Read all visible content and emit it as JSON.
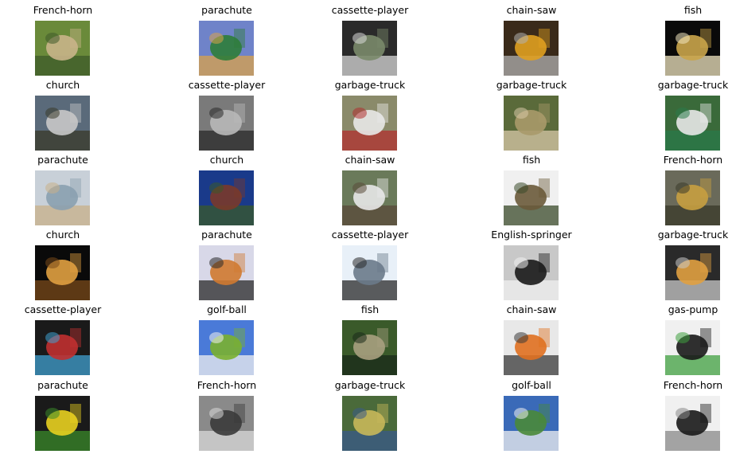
{
  "grid": {
    "rows": 6,
    "cols": 5,
    "items": [
      {
        "label": "French-horn",
        "icon": "french-horn-photo",
        "colors": [
          "#6a8a3a",
          "#c9b48a",
          "#3e5a2a"
        ]
      },
      {
        "label": "parachute",
        "icon": "parachute-photo",
        "colors": [
          "#6f83c9",
          "#2e7d3a",
          "#d9a24a"
        ]
      },
      {
        "label": "cassette-player",
        "icon": "cassette-player-photo",
        "colors": [
          "#2a2a2a",
          "#7a8a6a",
          "#d8d8d8"
        ]
      },
      {
        "label": "chain-saw",
        "icon": "chain-saw-photo",
        "colors": [
          "#3a2a1a",
          "#e0a020",
          "#b0b0b0"
        ]
      },
      {
        "label": "fish",
        "icon": "fish-photo",
        "colors": [
          "#0a0a0a",
          "#c9a44a",
          "#f0e6c0"
        ]
      },
      {
        "label": "church",
        "icon": "church-photo",
        "colors": [
          "#5a6a7a",
          "#c8c8c8",
          "#3a3a2a"
        ]
      },
      {
        "label": "cassette-player",
        "icon": "cassette-player-photo",
        "colors": [
          "#7a7a7a",
          "#b8b8b8",
          "#2a2a2a"
        ]
      },
      {
        "label": "garbage-truck",
        "icon": "garbage-truck-photo",
        "colors": [
          "#8a8a6a",
          "#e8e8e8",
          "#b03030"
        ]
      },
      {
        "label": "garbage-truck",
        "icon": "garbage-truck-photo",
        "colors": [
          "#5a6a3a",
          "#a89a6a",
          "#d8c8a8"
        ]
      },
      {
        "label": "garbage-truck",
        "icon": "garbage-truck-photo",
        "colors": [
          "#3a6a3a",
          "#e8e8e8",
          "#2a7a4a"
        ]
      },
      {
        "label": "parachute",
        "icon": "parachute-photo",
        "colors": [
          "#c8d0d8",
          "#8aa0b0",
          "#c8b08a"
        ]
      },
      {
        "label": "church",
        "icon": "church-photo",
        "colors": [
          "#1a3a8a",
          "#7a3a2a",
          "#3a5a2a"
        ]
      },
      {
        "label": "chain-saw",
        "icon": "chain-saw-photo",
        "colors": [
          "#6a7a5a",
          "#e8e8e8",
          "#5a4a3a"
        ]
      },
      {
        "label": "fish",
        "icon": "fish-photo",
        "colors": [
          "#f0f0f0",
          "#6a5a3a",
          "#3a4a2a"
        ]
      },
      {
        "label": "French-horn",
        "icon": "french-horn-photo",
        "colors": [
          "#6a6a5a",
          "#c8a040",
          "#3a3a2a"
        ]
      },
      {
        "label": "church",
        "icon": "church-photo",
        "colors": [
          "#0a0a0a",
          "#e0a040",
          "#7a4a1a"
        ]
      },
      {
        "label": "parachute",
        "icon": "parachute-photo",
        "colors": [
          "#d8d8e8",
          "#d07a30",
          "#2a2a2a"
        ]
      },
      {
        "label": "cassette-player",
        "icon": "cassette-player-photo",
        "colors": [
          "#e8f0f8",
          "#6a7a8a",
          "#2a2a2a"
        ]
      },
      {
        "label": "English-springer",
        "icon": "dog-photo",
        "colors": [
          "#c8c8c8",
          "#1a1a1a",
          "#f0f0f0"
        ]
      },
      {
        "label": "garbage-truck",
        "icon": "garbage-truck-photo",
        "colors": [
          "#2a2a2a",
          "#e0a040",
          "#c8c8c8"
        ]
      },
      {
        "label": "cassette-player",
        "icon": "cassette-player-photo",
        "colors": [
          "#1a1a1a",
          "#c03030",
          "#40a0d0"
        ]
      },
      {
        "label": "golf-ball",
        "icon": "golf-ball-photo",
        "colors": [
          "#4a7ad8",
          "#7ab030",
          "#f0f0f0"
        ]
      },
      {
        "label": "fish",
        "icon": "fish-photo",
        "colors": [
          "#3a5a2a",
          "#a8a080",
          "#1a2a1a"
        ]
      },
      {
        "label": "chain-saw",
        "icon": "chain-saw-photo",
        "colors": [
          "#e8e8e8",
          "#e07020",
          "#3a3a3a"
        ]
      },
      {
        "label": "gas-pump",
        "icon": "gas-pump-photo",
        "colors": [
          "#f0f0f0",
          "#1a1a1a",
          "#40a040"
        ]
      },
      {
        "label": "parachute",
        "icon": "parachute-photo",
        "colors": [
          "#1a1a1a",
          "#e8d020",
          "#3a8a2a"
        ]
      },
      {
        "label": "French-horn",
        "icon": "french-horn-photo",
        "colors": [
          "#8a8a8a",
          "#3a3a3a",
          "#d8d8d8"
        ]
      },
      {
        "label": "garbage-truck",
        "icon": "garbage-truck-photo",
        "colors": [
          "#4a6a3a",
          "#c8b85a",
          "#3a5a8a"
        ]
      },
      {
        "label": "golf-ball",
        "icon": "golf-ball-photo",
        "colors": [
          "#3a6ab8",
          "#4a8a3a",
          "#f0f0f0"
        ]
      },
      {
        "label": "French-horn",
        "icon": "french-horn-photo",
        "colors": [
          "#f0f0f0",
          "#1a1a1a",
          "#8a8a8a"
        ]
      }
    ]
  }
}
